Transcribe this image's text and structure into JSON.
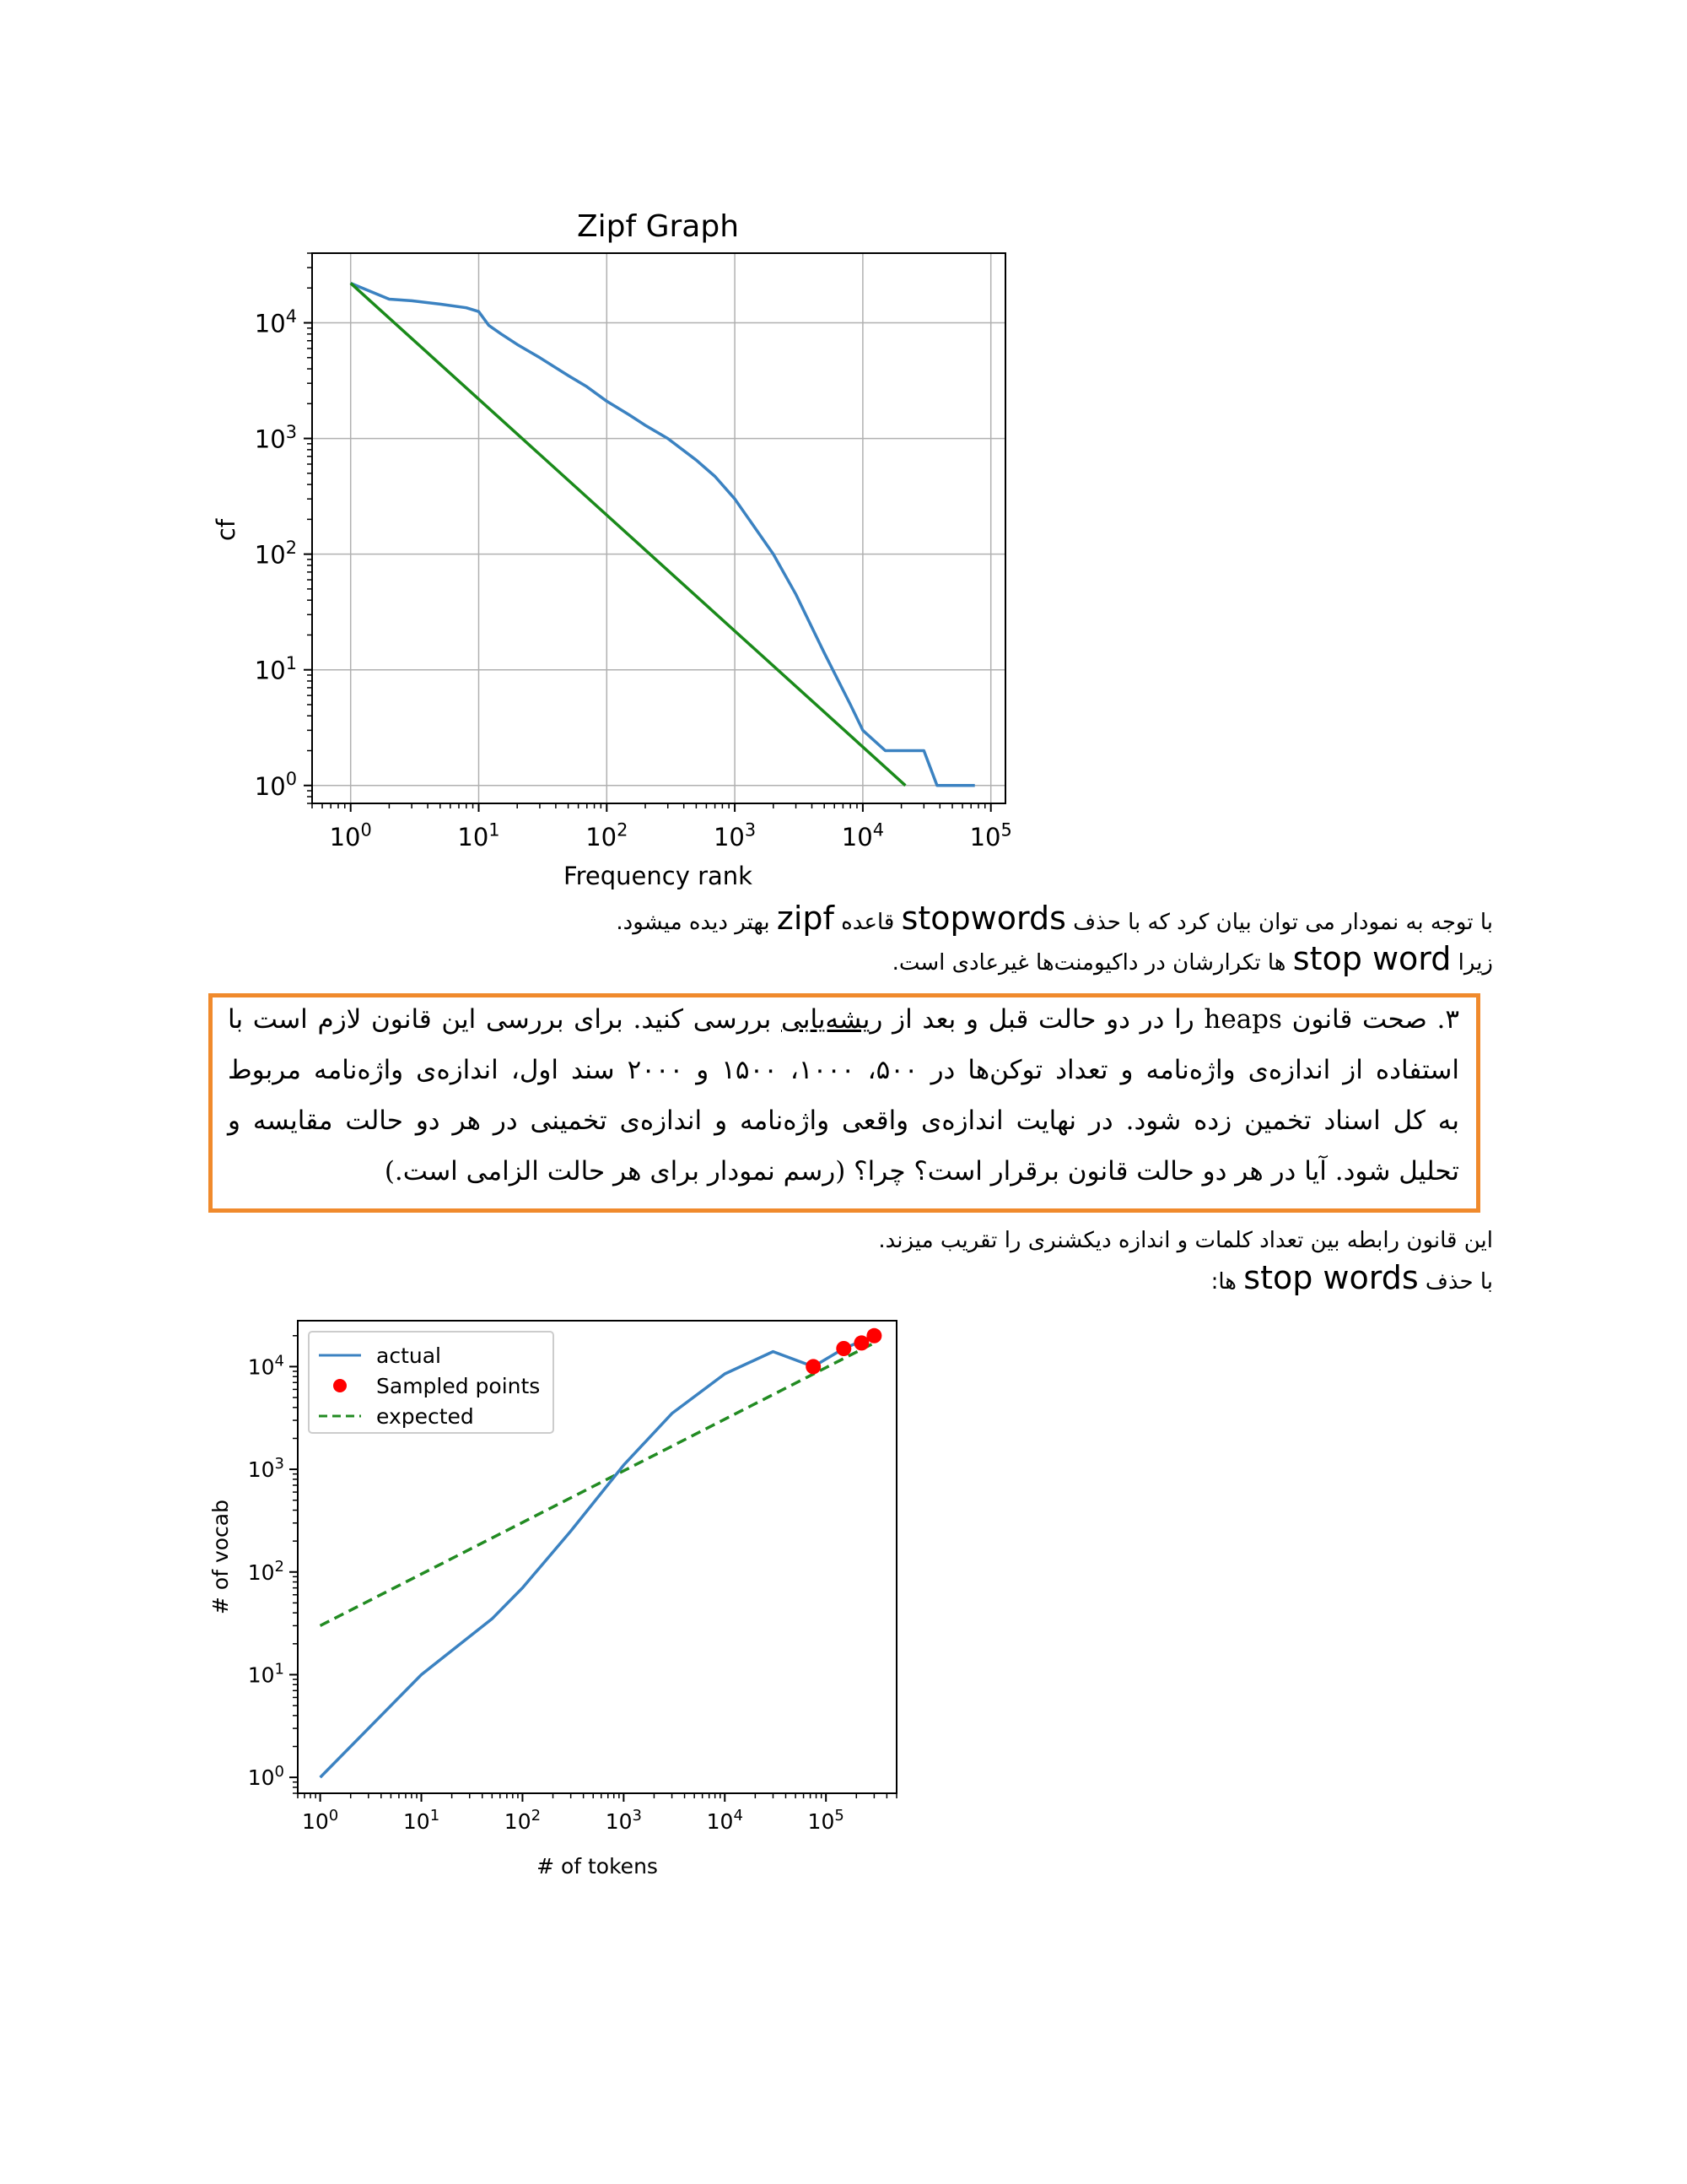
{
  "zipf_chart": {
    "title": "Zipf Graph",
    "xlabel": "Frequency rank",
    "ylabel": "cf",
    "x_ticks": [
      "10^0",
      "10^1",
      "10^2",
      "10^3",
      "10^4",
      "10^5"
    ],
    "y_ticks": [
      "10^0",
      "10^1",
      "10^2",
      "10^3",
      "10^4"
    ],
    "colors": {
      "actual": "#3b82c1",
      "expected": "#1a8a1a"
    }
  },
  "heaps_chart": {
    "xlabel": "# of tokens",
    "ylabel": "# of vocab",
    "x_ticks": [
      "10^0",
      "10^1",
      "10^2",
      "10^3",
      "10^4",
      "10^5"
    ],
    "y_ticks": [
      "10^0",
      "10^1",
      "10^2",
      "10^3",
      "10^4"
    ],
    "legend": [
      "actual",
      "Sampled points",
      "expected"
    ],
    "colors": {
      "actual": "#3b82c1",
      "sampled": "#ff0000",
      "expected": "#228b22"
    }
  },
  "chart_data": [
    {
      "type": "line",
      "title": "Zipf Graph",
      "xlabel": "Frequency rank",
      "ylabel": "cf",
      "xscale": "log",
      "yscale": "log",
      "xlim": [
        0.5,
        130000
      ],
      "ylim": [
        0.7,
        40000
      ],
      "grid": true,
      "series": [
        {
          "x": [
            1,
            2,
            3,
            5,
            8,
            10,
            12,
            15,
            20,
            30,
            50,
            70,
            100,
            150,
            200,
            300,
            500,
            700,
            1000,
            2000,
            3000,
            5000,
            8000,
            10000,
            15000,
            20000,
            25000,
            30000,
            38000,
            75000
          ],
          "y": [
            22000,
            16000,
            15500,
            14500,
            13500,
            12500,
            9500,
            8000,
            6500,
            5000,
            3500,
            2800,
            2100,
            1600,
            1300,
            1000,
            650,
            470,
            300,
            100,
            45,
            14,
            5,
            3,
            2,
            2,
            2,
            2,
            1,
            1
          ]
        },
        {
          "x": [
            1,
            21500
          ],
          "y": [
            22000,
            1
          ]
        }
      ]
    },
    {
      "type": "line",
      "xlabel": "# of tokens",
      "ylabel": "# of vocab",
      "xscale": "log",
      "yscale": "log",
      "xlim": [
        0.6,
        500000
      ],
      "ylim": [
        0.7,
        28000
      ],
      "grid": false,
      "legend": "top-left",
      "series": [
        {
          "name": "actual",
          "x": [
            1,
            10,
            50,
            100,
            300,
            1000,
            3000,
            10000,
            30000,
            75000,
            150000,
            300000
          ],
          "y": [
            1,
            10,
            35,
            70,
            250,
            1100,
            3500,
            8500,
            14000,
            10000,
            15000,
            20000
          ]
        },
        {
          "name": "Sampled points",
          "x": [
            75000,
            150000,
            225000,
            300000
          ],
          "y": [
            10000,
            15000,
            17000,
            20000
          ]
        },
        {
          "name": "expected",
          "x": [
            1,
            300000
          ],
          "y": [
            30,
            17000
          ]
        }
      ]
    }
  ],
  "text": {
    "p1_line1_a": "با توجه به نمودار می توان بیان کرد که با حذف ",
    "p1_line1_b": "stopwords",
    "p1_line1_c": " قاعده ",
    "p1_line1_d": "zipf",
    "p1_line1_e": " بهتر دیده میشود.",
    "p1_line2_a": "زیرا ",
    "p1_line2_b": "stop word",
    "p1_line2_c": " ها تکرارشان در داکیومنت‌ها غیرعادی است.",
    "q_line1_a": "۳. صحت قانون heaps را در دو حالت قبل و بعد از ",
    "q_line1_u": "ریشه‌یابی",
    "q_line1_b": " بررسی کنید. برای بررسی این قانون لازم است با",
    "q_line2": "استفاده از اندازه‌ی واژه‌نامه و تعداد توکن‌ها در ۵۰۰، ۱۰۰۰، ۱۵۰۰ و ۲۰۰۰ سند اول، اندازه‌ی واژه‌نامه مربوط",
    "q_line3": "به کل اسناد تخمین زده شود. در نهایت اندازه‌ی واقعی واژه‌نامه و اندازه‌ی تخمینی در هر دو حالت مقایسه و",
    "q_line4": "تحلیل شود. آیا در هر دو حالت قانون برقرار است؟ چرا؟ (رسم نمودار برای هر حالت الزامی است.)",
    "p2_line1": "این قانون رابطه بین تعداد کلمات و اندازه دیکشنری را تقریب میزند.",
    "p2_line2_a": "با حذف ",
    "p2_line2_b": "stop words",
    "p2_line2_c": " ها:"
  }
}
